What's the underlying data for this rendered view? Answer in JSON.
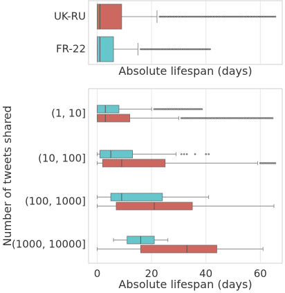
{
  "colors": {
    "ukru": "#cd6860",
    "fr22": "#66c6cc"
  },
  "chart_data": [
    {
      "type": "box",
      "xlabel": "Absolute lifespan (days)",
      "ylabel": "",
      "xlim": [
        -3,
        66
      ],
      "grid": true,
      "categories": [
        "UK-RU",
        "FR-22"
      ],
      "series": [
        {
          "name": "UK-RU",
          "color": "ukru",
          "boxes": [
            {
              "category": "UK-RU",
              "whislo": 0,
              "q1": 0,
              "med": 1,
              "q3": 9,
              "whishi": 22,
              "fliers_from": 23,
              "fliers_to": 65.5
            }
          ]
        },
        {
          "name": "FR-22",
          "color": "fr22",
          "boxes": [
            {
              "category": "FR-22",
              "whislo": 0,
              "q1": 0,
              "med": 1,
              "q3": 6,
              "whishi": 15,
              "fliers_from": 16,
              "fliers_to": 41.5
            }
          ]
        }
      ]
    },
    {
      "type": "box",
      "xlabel": "Absolute lifespan (days)",
      "ylabel": "Number of tweets shared",
      "xlim": [
        -3,
        66
      ],
      "xticks": [
        0,
        20,
        40,
        60
      ],
      "grid": true,
      "categories": [
        "(1, 10]",
        "(10, 100]",
        "(100, 1000]",
        "(1000, 10000]"
      ],
      "series": [
        {
          "name": "FR-22",
          "color": "fr22",
          "boxes": [
            {
              "category": "(1, 10]",
              "whislo": 0,
              "q1": 0,
              "med": 3,
              "q3": 8,
              "whishi": 20,
              "fliers_from": 21,
              "fliers_to": 38.5
            },
            {
              "category": "(10, 100]",
              "whislo": 0,
              "q1": 1,
              "med": 5,
              "q3": 13,
              "whishi": 29,
              "fliers": [
                31,
                32,
                33,
                36,
                40,
                41
              ]
            },
            {
              "category": "(100, 1000]",
              "whislo": 0,
              "q1": 5,
              "med": 9,
              "q3": 24,
              "whishi": 41,
              "fliers": []
            },
            {
              "category": "(1000, 10000]",
              "whislo": 6,
              "q1": 11,
              "med": 16,
              "q3": 21,
              "whishi": 26,
              "fliers": []
            }
          ]
        },
        {
          "name": "UK-RU",
          "color": "ukru",
          "boxes": [
            {
              "category": "(1, 10]",
              "whislo": 0,
              "q1": 0,
              "med": 3,
              "q3": 12,
              "whishi": 30,
              "fliers_from": 31,
              "fliers_to": 64.5
            },
            {
              "category": "(10, 100]",
              "whislo": 0,
              "q1": 2,
              "med": 9,
              "q3": 25,
              "whishi": 59,
              "fliers_from": 60,
              "fliers_to": 65.5
            },
            {
              "category": "(100, 1000]",
              "whislo": 0,
              "q1": 7,
              "med": 21,
              "q3": 35,
              "whishi": 65,
              "fliers": []
            },
            {
              "category": "(1000, 10000]",
              "whislo": 0,
              "q1": 16,
              "med": 33,
              "q3": 44,
              "whishi": 61,
              "fliers": []
            }
          ]
        }
      ]
    }
  ]
}
